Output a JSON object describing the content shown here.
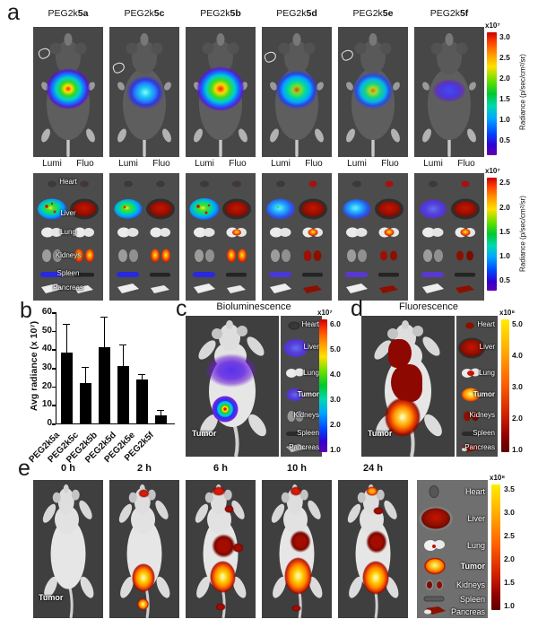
{
  "panels": {
    "a": {
      "letter": "a",
      "mouse_labels": [
        {
          "prefix": "PEG2k",
          "code": "5a"
        },
        {
          "prefix": "PEG2k",
          "code": "5c"
        },
        {
          "prefix": "PEG2k",
          "code": "5b"
        },
        {
          "prefix": "PEG2k",
          "code": "5d"
        },
        {
          "prefix": "PEG2k",
          "code": "5e"
        },
        {
          "prefix": "PEG2k",
          "code": "5f"
        }
      ],
      "colorbar_mice": {
        "multiplier": "x10⁷",
        "ticks": [
          "3.0",
          "2.5",
          "2.0",
          "1.5",
          "1.0",
          "0.5"
        ],
        "unit_label": "Radiance (p/sec/cm²/sr)"
      },
      "column_headers": {
        "lumi": "Lumi",
        "fluo": "Fluo"
      },
      "organ_labels": [
        "Heart",
        "Liver",
        "Lung",
        "Kidneys",
        "Spleen",
        "Pancreas"
      ],
      "colorbar_organs": {
        "multiplier": "x10⁷",
        "ticks": [
          "2.5",
          "2.0",
          "1.5",
          "1.0",
          "0.5"
        ],
        "unit_label": "Radiance (p/sec/cm²/sr)"
      }
    },
    "b": {
      "letter": "b"
    },
    "c": {
      "letter": "c",
      "title": "Bioluminescence",
      "tumor_label": "Tumor",
      "organ_labels": [
        "Heart",
        "Liver",
        "Lung",
        "Tumor",
        "Kidneys",
        "Spleen",
        "Pancreas"
      ],
      "colorbar": {
        "multiplier": "x10⁷",
        "ticks": [
          "6.0",
          "5.0",
          "4.0",
          "3.0",
          "2.0",
          "1.0"
        ]
      }
    },
    "d": {
      "letter": "d",
      "title": "Fluorescence",
      "tumor_label": "Tumor",
      "organ_labels": [
        "Heart",
        "Liver",
        "Lung",
        "Tumor",
        "Kidneys",
        "Spleen",
        "Pancreas"
      ],
      "colorbar": {
        "multiplier": "x10⁸",
        "ticks": [
          "5.0",
          "4.0",
          "3.0",
          "2.0",
          "1.0"
        ]
      }
    },
    "e": {
      "letter": "e",
      "timepoints": [
        "0 h",
        "2 h",
        "6 h",
        "10 h",
        "24 h"
      ],
      "tumor_label": "Tumor",
      "organ_labels": [
        "Heart",
        "Liver",
        "Lung",
        "Tumor",
        "Kidneys",
        "Spleen",
        "Pancreas"
      ],
      "colorbar": {
        "multiplier": "x10⁸",
        "ticks": [
          "3.5",
          "3.0",
          "2.5",
          "2.0",
          "1.5",
          "1.0"
        ]
      }
    }
  },
  "chart_data": {
    "type": "bar",
    "title": "",
    "xlabel": "",
    "ylabel": "Avg radiance (x 10⁷)",
    "categories": [
      "PEG2k5a",
      "PEG2k5c",
      "PEG2k5b",
      "PEG2k5d",
      "PEG2k5e",
      "PEG2k5f"
    ],
    "values": [
      38,
      22,
      41,
      31,
      23.5,
      4.5
    ],
    "errors_upper": [
      15,
      8,
      16,
      11,
      2.5,
      2.5
    ],
    "ylim": [
      0,
      60
    ],
    "yticks": [
      0,
      10,
      20,
      30,
      40,
      50,
      60
    ],
    "bar_color": "#000000",
    "grid": false,
    "legend_position": "none"
  },
  "colors": {
    "rainbow_scale_top": "#c80000",
    "rainbow_scale_bottom": "#6000b0",
    "hot_scale_top": "#ffec00",
    "hot_scale_bottom": "#5c0000",
    "image_background": "#474747"
  }
}
